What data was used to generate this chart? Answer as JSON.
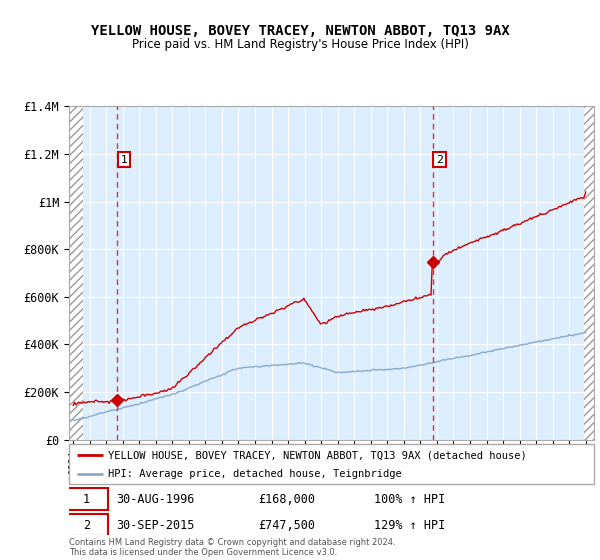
{
  "title": "YELLOW HOUSE, BOVEY TRACEY, NEWTON ABBOT, TQ13 9AX",
  "subtitle": "Price paid vs. HM Land Registry's House Price Index (HPI)",
  "ylim": [
    0,
    1400000
  ],
  "yticks": [
    0,
    200000,
    400000,
    600000,
    800000,
    1000000,
    1200000,
    1400000
  ],
  "ytick_labels": [
    "£0",
    "£200K",
    "£400K",
    "£600K",
    "£800K",
    "£1M",
    "£1.2M",
    "£1.4M"
  ],
  "xlim_start": 1993.75,
  "xlim_end": 2025.5,
  "hatch_left_end": 1994.58,
  "hatch_right_start": 2024.92,
  "red_line_color": "#cc0000",
  "blue_line_color": "#88aacc",
  "marker_color": "#cc0000",
  "sale1_x": 1996.667,
  "sale1_y": 168000,
  "sale1_label": "1",
  "sale2_x": 2015.75,
  "sale2_y": 747500,
  "sale2_label": "2",
  "vline_color": "#dd3333",
  "bg_color": "#ddeeff",
  "grid_color": "#ffffff",
  "legend_line1": "YELLOW HOUSE, BOVEY TRACEY, NEWTON ABBOT, TQ13 9AX (detached house)",
  "legend_line2": "HPI: Average price, detached house, Teignbridge",
  "annotation1_date": "30-AUG-1996",
  "annotation1_price": "£168,000",
  "annotation1_hpi": "100% ↑ HPI",
  "annotation2_date": "30-SEP-2015",
  "annotation2_price": "£747,500",
  "annotation2_hpi": "129% ↑ HPI",
  "footer": "Contains HM Land Registry data © Crown copyright and database right 2024.\nThis data is licensed under the Open Government Licence v3.0."
}
